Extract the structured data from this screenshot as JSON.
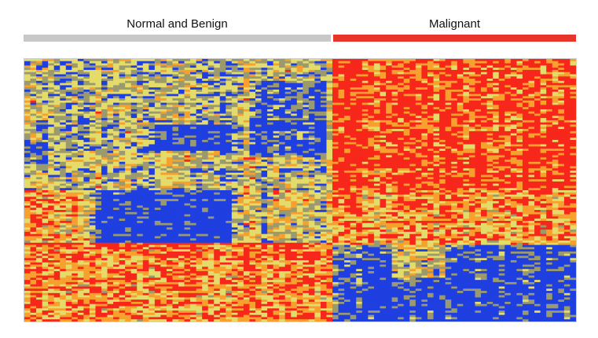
{
  "groups": {
    "normal": {
      "label": "Normal and Benign",
      "color": "#c8c8c8"
    },
    "malignant": {
      "label": "Malignant",
      "color": "#e8352b"
    }
  },
  "colors": {
    "low": "#1f3fe0",
    "mid": "#e4dc6a",
    "high": "#f7271b",
    "mid_low": "#9a9a6e",
    "mid_high": "#f7a02e"
  },
  "chart_data": {
    "type": "heatmap",
    "title": "",
    "xlabel": "",
    "ylabel": "",
    "legend": "none",
    "columns": {
      "normal_and_benign": 52,
      "malignant": 41
    },
    "rows": 120,
    "scale": {
      "min": -1,
      "max": 1
    },
    "row_blocks": [
      {
        "genes": "1-60",
        "normal_and_benign": "low to mid (mostly blue/yellow)",
        "malignant": "high (red)"
      },
      {
        "genes": "61-84",
        "normal_and_benign": "low (blue) in central columns, mid elsewhere",
        "malignant": "mid-high (orange)"
      },
      {
        "genes": "85-120",
        "normal_and_benign": "mid-high (orange/yellow)",
        "malignant": "low (blue)"
      }
    ]
  }
}
